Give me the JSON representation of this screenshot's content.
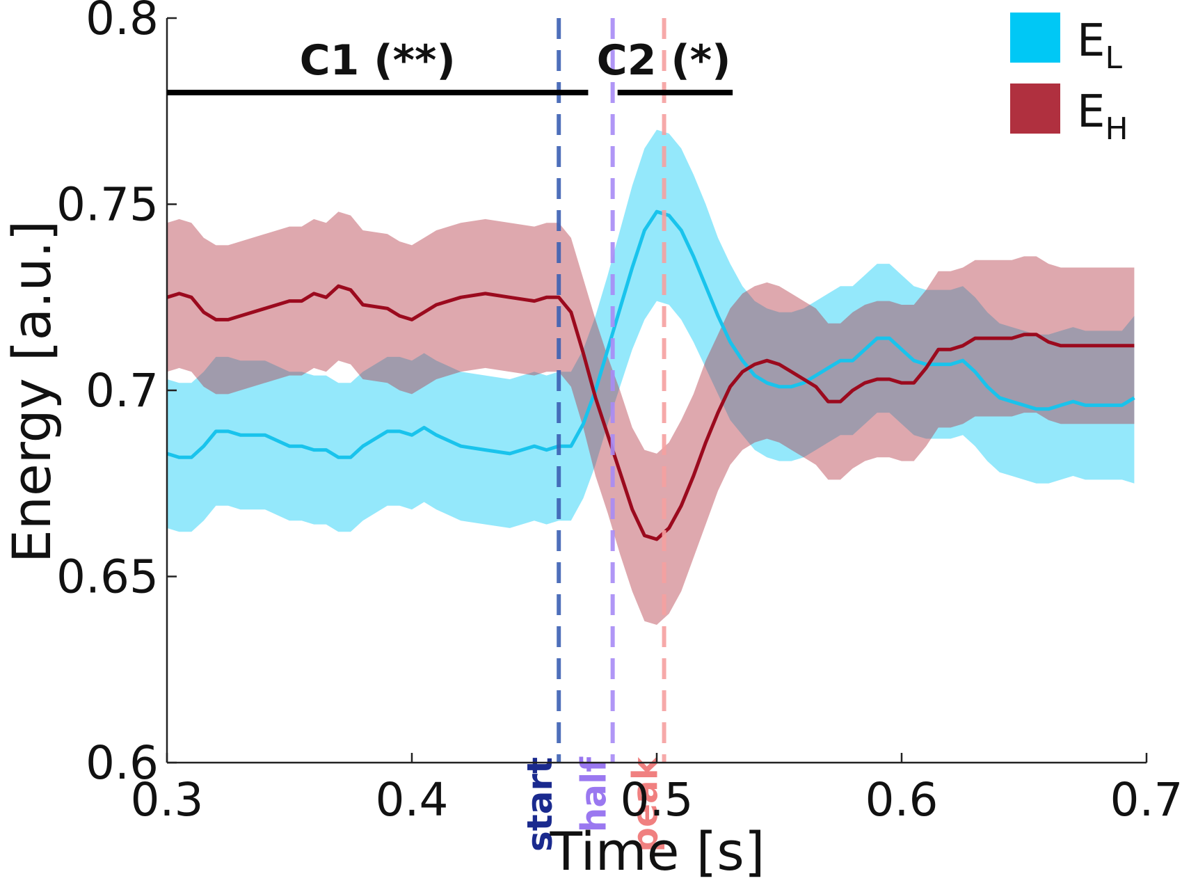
{
  "chart_data": {
    "type": "line",
    "title": "",
    "xlabel": "Time [s]",
    "ylabel": "Energy [a.u.]",
    "xlim": [
      0.3,
      0.7
    ],
    "ylim": [
      0.6,
      0.8
    ],
    "xticks": [
      0.3,
      0.4,
      0.5,
      0.6,
      0.7
    ],
    "xtick_labels": [
      "0.3",
      "0.4",
      "0.5",
      "0.6",
      "0.7"
    ],
    "yticks": [
      0.6,
      0.65,
      0.7,
      0.75,
      0.8
    ],
    "ytick_labels": [
      "0.6",
      "0.65",
      "0.7",
      "0.75",
      "0.8"
    ],
    "grid": false,
    "legend_position": "top-right",
    "series": [
      {
        "name": "EL",
        "legend_main": "E",
        "legend_sub": "L",
        "color": "#19c3ec",
        "band_color": "#00c8f5",
        "x": [
          0.3,
          0.305,
          0.31,
          0.315,
          0.32,
          0.325,
          0.33,
          0.34,
          0.35,
          0.355,
          0.36,
          0.365,
          0.37,
          0.375,
          0.38,
          0.39,
          0.395,
          0.4,
          0.405,
          0.41,
          0.42,
          0.43,
          0.44,
          0.45,
          0.455,
          0.46,
          0.465,
          0.47,
          0.475,
          0.48,
          0.485,
          0.49,
          0.495,
          0.5,
          0.505,
          0.51,
          0.515,
          0.52,
          0.525,
          0.53,
          0.535,
          0.54,
          0.545,
          0.55,
          0.555,
          0.56,
          0.565,
          0.57,
          0.575,
          0.58,
          0.585,
          0.59,
          0.595,
          0.6,
          0.605,
          0.61,
          0.615,
          0.62,
          0.625,
          0.63,
          0.635,
          0.64,
          0.645,
          0.65,
          0.655,
          0.66,
          0.665,
          0.67,
          0.675,
          0.68,
          0.685,
          0.69,
          0.695
        ],
        "y": [
          0.683,
          0.682,
          0.682,
          0.685,
          0.689,
          0.689,
          0.688,
          0.688,
          0.685,
          0.685,
          0.684,
          0.684,
          0.682,
          0.682,
          0.685,
          0.689,
          0.689,
          0.688,
          0.69,
          0.688,
          0.685,
          0.684,
          0.683,
          0.685,
          0.684,
          0.685,
          0.685,
          0.691,
          0.7,
          0.711,
          0.722,
          0.733,
          0.743,
          0.748,
          0.747,
          0.743,
          0.736,
          0.728,
          0.72,
          0.713,
          0.708,
          0.704,
          0.702,
          0.701,
          0.701,
          0.702,
          0.704,
          0.706,
          0.708,
          0.708,
          0.711,
          0.714,
          0.714,
          0.711,
          0.708,
          0.707,
          0.707,
          0.707,
          0.708,
          0.705,
          0.701,
          0.698,
          0.697,
          0.696,
          0.695,
          0.695,
          0.696,
          0.697,
          0.696,
          0.696,
          0.696,
          0.696,
          0.698
        ],
        "lower": [
          0.663,
          0.662,
          0.662,
          0.665,
          0.669,
          0.669,
          0.668,
          0.668,
          0.665,
          0.665,
          0.664,
          0.664,
          0.662,
          0.662,
          0.665,
          0.669,
          0.669,
          0.668,
          0.67,
          0.668,
          0.665,
          0.664,
          0.663,
          0.665,
          0.664,
          0.665,
          0.665,
          0.671,
          0.68,
          0.691,
          0.701,
          0.711,
          0.719,
          0.724,
          0.723,
          0.719,
          0.713,
          0.706,
          0.699,
          0.692,
          0.688,
          0.684,
          0.682,
          0.681,
          0.681,
          0.682,
          0.684,
          0.686,
          0.688,
          0.688,
          0.691,
          0.694,
          0.694,
          0.691,
          0.688,
          0.687,
          0.687,
          0.687,
          0.688,
          0.685,
          0.681,
          0.678,
          0.677,
          0.676,
          0.675,
          0.675,
          0.676,
          0.677,
          0.676,
          0.676,
          0.676,
          0.676,
          0.675
        ],
        "upper": [
          0.703,
          0.702,
          0.702,
          0.705,
          0.709,
          0.709,
          0.708,
          0.708,
          0.705,
          0.705,
          0.704,
          0.704,
          0.702,
          0.702,
          0.705,
          0.709,
          0.709,
          0.708,
          0.71,
          0.708,
          0.705,
          0.704,
          0.703,
          0.705,
          0.704,
          0.705,
          0.705,
          0.711,
          0.72,
          0.731,
          0.743,
          0.755,
          0.765,
          0.77,
          0.769,
          0.765,
          0.758,
          0.75,
          0.741,
          0.734,
          0.728,
          0.724,
          0.722,
          0.721,
          0.721,
          0.722,
          0.724,
          0.726,
          0.728,
          0.728,
          0.731,
          0.734,
          0.734,
          0.731,
          0.728,
          0.727,
          0.727,
          0.727,
          0.728,
          0.725,
          0.721,
          0.718,
          0.717,
          0.716,
          0.715,
          0.715,
          0.716,
          0.717,
          0.716,
          0.716,
          0.716,
          0.716,
          0.72
        ]
      },
      {
        "name": "EH",
        "legend_main": "E",
        "legend_sub": "H",
        "color": "#9b0a1e",
        "band_color": "#b0303f",
        "x": [
          0.3,
          0.305,
          0.31,
          0.315,
          0.32,
          0.325,
          0.33,
          0.34,
          0.35,
          0.355,
          0.36,
          0.365,
          0.37,
          0.375,
          0.38,
          0.39,
          0.395,
          0.4,
          0.405,
          0.41,
          0.42,
          0.43,
          0.44,
          0.45,
          0.455,
          0.46,
          0.465,
          0.47,
          0.475,
          0.48,
          0.485,
          0.49,
          0.495,
          0.5,
          0.505,
          0.51,
          0.515,
          0.52,
          0.525,
          0.53,
          0.535,
          0.54,
          0.545,
          0.55,
          0.555,
          0.56,
          0.565,
          0.57,
          0.575,
          0.58,
          0.585,
          0.59,
          0.595,
          0.6,
          0.605,
          0.61,
          0.615,
          0.62,
          0.625,
          0.63,
          0.635,
          0.64,
          0.645,
          0.65,
          0.655,
          0.66,
          0.665,
          0.67,
          0.675,
          0.68,
          0.685,
          0.69,
          0.695
        ],
        "y": [
          0.725,
          0.726,
          0.725,
          0.721,
          0.719,
          0.719,
          0.72,
          0.722,
          0.724,
          0.724,
          0.726,
          0.725,
          0.728,
          0.727,
          0.723,
          0.722,
          0.72,
          0.719,
          0.721,
          0.723,
          0.725,
          0.726,
          0.725,
          0.724,
          0.725,
          0.725,
          0.721,
          0.71,
          0.698,
          0.688,
          0.678,
          0.668,
          0.661,
          0.66,
          0.663,
          0.669,
          0.677,
          0.686,
          0.694,
          0.701,
          0.705,
          0.707,
          0.708,
          0.707,
          0.705,
          0.703,
          0.701,
          0.697,
          0.697,
          0.7,
          0.702,
          0.703,
          0.703,
          0.702,
          0.702,
          0.706,
          0.711,
          0.711,
          0.712,
          0.714,
          0.714,
          0.714,
          0.714,
          0.715,
          0.715,
          0.713,
          0.712,
          0.712,
          0.712,
          0.712,
          0.712,
          0.712,
          0.712
        ],
        "lower": [
          0.705,
          0.706,
          0.705,
          0.701,
          0.699,
          0.699,
          0.7,
          0.702,
          0.704,
          0.704,
          0.706,
          0.705,
          0.708,
          0.707,
          0.703,
          0.702,
          0.7,
          0.699,
          0.701,
          0.703,
          0.705,
          0.706,
          0.705,
          0.704,
          0.705,
          0.705,
          0.701,
          0.69,
          0.677,
          0.667,
          0.656,
          0.646,
          0.638,
          0.637,
          0.64,
          0.646,
          0.655,
          0.664,
          0.673,
          0.68,
          0.684,
          0.686,
          0.687,
          0.686,
          0.684,
          0.682,
          0.68,
          0.676,
          0.676,
          0.679,
          0.681,
          0.682,
          0.682,
          0.681,
          0.681,
          0.685,
          0.69,
          0.69,
          0.691,
          0.693,
          0.693,
          0.693,
          0.693,
          0.694,
          0.694,
          0.692,
          0.691,
          0.691,
          0.691,
          0.691,
          0.691,
          0.691,
          0.691
        ],
        "upper": [
          0.745,
          0.746,
          0.745,
          0.741,
          0.739,
          0.739,
          0.74,
          0.742,
          0.744,
          0.744,
          0.746,
          0.745,
          0.748,
          0.747,
          0.743,
          0.742,
          0.74,
          0.739,
          0.741,
          0.743,
          0.745,
          0.746,
          0.745,
          0.744,
          0.745,
          0.745,
          0.741,
          0.73,
          0.719,
          0.709,
          0.7,
          0.69,
          0.684,
          0.683,
          0.686,
          0.692,
          0.699,
          0.708,
          0.715,
          0.722,
          0.726,
          0.728,
          0.729,
          0.728,
          0.726,
          0.724,
          0.722,
          0.718,
          0.718,
          0.721,
          0.723,
          0.724,
          0.724,
          0.723,
          0.723,
          0.727,
          0.732,
          0.732,
          0.733,
          0.735,
          0.735,
          0.735,
          0.735,
          0.736,
          0.736,
          0.734,
          0.733,
          0.733,
          0.733,
          0.733,
          0.733,
          0.733,
          0.733
        ]
      }
    ],
    "events": [
      {
        "label": "start",
        "x": 0.46,
        "color": "#3b5fb3",
        "text_color": "#1a2a8e"
      },
      {
        "label": "half",
        "x": 0.482,
        "color": "#a78bf5",
        "text_color": "#9a78f0"
      },
      {
        "label": "peak",
        "x": 0.503,
        "color": "#f5a0a0",
        "text_color": "#f08080"
      }
    ],
    "clusters": [
      {
        "label": "C1 (**)",
        "x_start": 0.3,
        "x_end": 0.472,
        "y": 0.78
      },
      {
        "label": "C2 (*)",
        "x_start": 0.484,
        "x_end": 0.531,
        "y": 0.78
      }
    ]
  }
}
